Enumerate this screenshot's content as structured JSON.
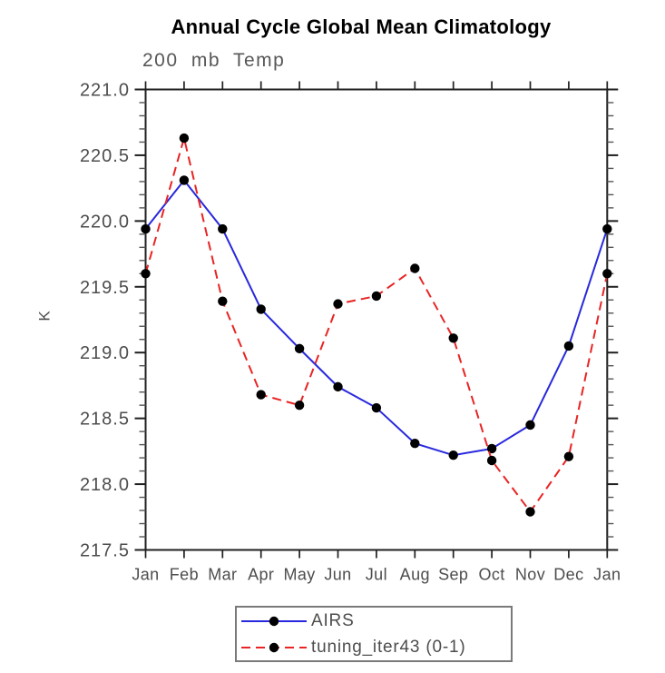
{
  "title": "Annual Cycle Global Mean Climatology",
  "subtitle": "200 mb Temp",
  "ylabel": "K",
  "colors": {
    "axis": "#1f1f1f",
    "minor_tick": "#555555",
    "text": "#4d4d4d",
    "title": "#000000",
    "airs_blue": "#2828dd",
    "tuning_red": "#e82424",
    "marker_black": "#000000",
    "legend_border": "#7a7a7a"
  },
  "legend": {
    "position": "bottom-center",
    "items": [
      "AIRS",
      "tuning_iter43 (0-1)"
    ]
  },
  "chart_data": {
    "type": "line",
    "title": "Annual Cycle Global Mean Climatology",
    "subtitle": "200 mb Temp",
    "xlabel": "",
    "ylabel": "K",
    "categories": [
      "Jan",
      "Feb",
      "Mar",
      "Apr",
      "May",
      "Jun",
      "Jul",
      "Aug",
      "Sep",
      "Oct",
      "Nov",
      "Dec",
      "Jan"
    ],
    "ylim": [
      217.5,
      221.0
    ],
    "ytick_major": 0.5,
    "ytick_minor": 0.1,
    "grid": false,
    "legend_position": "bottom",
    "series": [
      {
        "name": "AIRS",
        "color": "#2828dd",
        "style": "solid",
        "marker": "circle",
        "marker_color": "#000000",
        "values": [
          219.94,
          220.31,
          219.94,
          219.33,
          219.03,
          218.74,
          218.58,
          218.31,
          218.22,
          218.27,
          218.45,
          219.05,
          219.94
        ]
      },
      {
        "name": "tuning_iter43 (0-1)",
        "color": "#e82424",
        "style": "dashed",
        "marker": "circle",
        "marker_color": "#000000",
        "values": [
          219.6,
          220.63,
          219.39,
          218.68,
          218.6,
          219.37,
          219.43,
          219.64,
          219.11,
          218.18,
          217.79,
          218.21,
          219.6
        ]
      }
    ]
  }
}
